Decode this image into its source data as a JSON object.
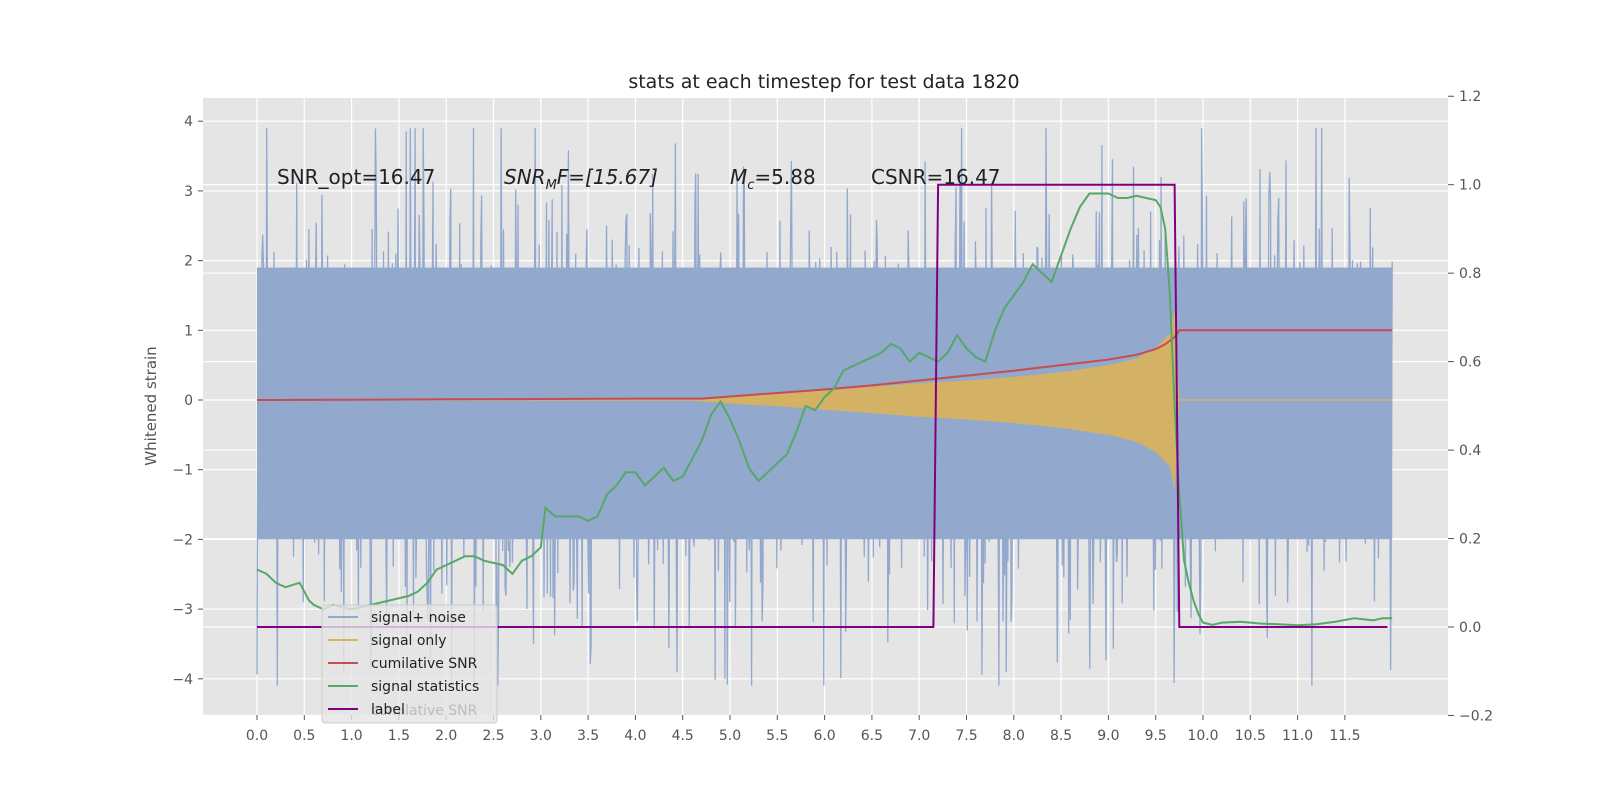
{
  "chart_data": {
    "type": "line",
    "title": "stats at each timestep for test data 1820",
    "ylabel": "Whitened strain",
    "y2label": "",
    "xlim": [
      -0.5,
      12.3
    ],
    "ylim": [
      -4.5,
      4.3
    ],
    "y2lim": [
      -0.2,
      1.2
    ],
    "x_ticks": [
      "0.0",
      "0.5",
      "1.0",
      "1.5",
      "2.0",
      "2.5",
      "3.0",
      "3.5",
      "4.0",
      "4.5",
      "5.0",
      "5.5",
      "6.0",
      "6.5",
      "7.0",
      "7.5",
      "8.0",
      "8.5",
      "9.0",
      "9.5",
      "10.0",
      "10.5",
      "11.0",
      "11.5"
    ],
    "y_ticks": [
      "4",
      "3",
      "2",
      "1",
      "0",
      "−1",
      "−2",
      "−3",
      "−4"
    ],
    "y2_ticks": [
      "1.2",
      "1.0",
      "0.8",
      "0.6",
      "0.4",
      "0.2",
      "0.0",
      "−0.2"
    ],
    "grid": true,
    "legend_position": "lower-left",
    "annotations": {
      "snr_opt": "SNR_opt=16.47",
      "snr_mf_main": "SNR",
      "snr_mf_sub": "M",
      "snr_mf_rest": "F=[15.67]",
      "mc_main": "M",
      "mc_sub": "c",
      "mc_rest": "=5.88",
      "csnr": "CSNR=16.47"
    },
    "legend_extra_text": "cumilative SNR",
    "series": [
      {
        "name": "signal+ noise",
        "color": "#92a8cd",
        "axis": "left",
        "kind": "noise",
        "x_range": [
          0.0,
          12.0
        ],
        "typical_envelope": [
          -2.0,
          1.9
        ],
        "peak_range": [
          -4.1,
          3.9
        ]
      },
      {
        "name": "signal only",
        "color": "#dcb25a",
        "axis": "left",
        "kind": "chirp",
        "x_range": [
          0.0,
          12.0
        ],
        "envelope_x": [
          4.5,
          5.0,
          5.5,
          6.0,
          6.5,
          7.0,
          7.5,
          8.0,
          8.5,
          9.0,
          9.3,
          9.5,
          9.65,
          9.7,
          9.75,
          12.0
        ],
        "envelope_amp": [
          0.0,
          0.05,
          0.09,
          0.14,
          0.19,
          0.24,
          0.28,
          0.33,
          0.4,
          0.5,
          0.6,
          0.75,
          0.95,
          1.3,
          0.0,
          0.0
        ]
      },
      {
        "name": "cumilative SNR",
        "color": "#c44e52",
        "axis": "left",
        "x": [
          0.0,
          1.0,
          2.0,
          3.0,
          4.0,
          4.7,
          5.0,
          5.5,
          6.0,
          6.5,
          7.0,
          7.5,
          8.0,
          8.5,
          9.0,
          9.3,
          9.5,
          9.6,
          9.7,
          9.75,
          12.0
        ],
        "y": [
          0.0,
          0.005,
          0.01,
          0.015,
          0.02,
          0.02,
          0.05,
          0.1,
          0.15,
          0.21,
          0.28,
          0.35,
          0.42,
          0.5,
          0.58,
          0.65,
          0.73,
          0.8,
          0.9,
          1.0,
          1.0
        ]
      },
      {
        "name": "signal statistics",
        "color": "#55a868",
        "axis": "right",
        "x": [
          0.0,
          0.1,
          0.2,
          0.3,
          0.45,
          0.55,
          0.6,
          0.7,
          0.8,
          0.9,
          1.0,
          1.2,
          1.4,
          1.6,
          1.7,
          1.8,
          1.9,
          2.0,
          2.1,
          2.2,
          2.3,
          2.4,
          2.5,
          2.6,
          2.7,
          2.8,
          2.9,
          3.0,
          3.05,
          3.15,
          3.3,
          3.4,
          3.5,
          3.6,
          3.7,
          3.8,
          3.9,
          4.0,
          4.1,
          4.2,
          4.3,
          4.4,
          4.5,
          4.6,
          4.7,
          4.8,
          4.9,
          5.0,
          5.1,
          5.2,
          5.3,
          5.4,
          5.5,
          5.6,
          5.7,
          5.8,
          5.9,
          6.0,
          6.1,
          6.2,
          6.3,
          6.4,
          6.5,
          6.6,
          6.7,
          6.8,
          6.9,
          7.0,
          7.1,
          7.2,
          7.3,
          7.4,
          7.5,
          7.6,
          7.7,
          7.8,
          7.9,
          8.0,
          8.1,
          8.2,
          8.3,
          8.4,
          8.5,
          8.6,
          8.7,
          8.8,
          8.9,
          9.0,
          9.1,
          9.2,
          9.3,
          9.4,
          9.5,
          9.55,
          9.6,
          9.65,
          9.7,
          9.75,
          9.8,
          9.85,
          9.9,
          9.95,
          10.0,
          10.1,
          10.2,
          10.4,
          10.6,
          10.8,
          11.0,
          11.2,
          11.4,
          11.6,
          11.8,
          11.9,
          12.0
        ],
        "y": [
          0.13,
          0.12,
          0.1,
          0.09,
          0.1,
          0.06,
          0.05,
          0.04,
          0.05,
          0.045,
          0.04,
          0.05,
          0.06,
          0.07,
          0.08,
          0.1,
          0.13,
          0.14,
          0.15,
          0.16,
          0.16,
          0.15,
          0.145,
          0.14,
          0.12,
          0.15,
          0.16,
          0.18,
          0.27,
          0.25,
          0.25,
          0.25,
          0.24,
          0.25,
          0.3,
          0.32,
          0.35,
          0.35,
          0.32,
          0.34,
          0.36,
          0.33,
          0.34,
          0.38,
          0.42,
          0.48,
          0.51,
          0.47,
          0.42,
          0.36,
          0.33,
          0.35,
          0.37,
          0.39,
          0.44,
          0.5,
          0.49,
          0.52,
          0.54,
          0.58,
          0.59,
          0.6,
          0.61,
          0.62,
          0.64,
          0.63,
          0.6,
          0.62,
          0.61,
          0.6,
          0.62,
          0.66,
          0.63,
          0.61,
          0.6,
          0.67,
          0.72,
          0.75,
          0.78,
          0.82,
          0.8,
          0.78,
          0.84,
          0.9,
          0.95,
          0.98,
          0.98,
          0.98,
          0.97,
          0.97,
          0.975,
          0.97,
          0.965,
          0.95,
          0.9,
          0.75,
          0.5,
          0.3,
          0.15,
          0.1,
          0.06,
          0.03,
          0.01,
          0.005,
          0.01,
          0.012,
          0.008,
          0.006,
          0.004,
          0.006,
          0.012,
          0.02,
          0.015,
          0.02,
          0.02
        ],
        "note_only_for_drawing": false
      },
      {
        "name": "label",
        "color": "#800080",
        "axis": "right",
        "x": [
          0.0,
          7.15,
          7.2,
          9.7,
          9.75,
          11.95
        ],
        "y": [
          0.0,
          0.0,
          1.0,
          1.0,
          0.0,
          0.0
        ]
      }
    ]
  }
}
